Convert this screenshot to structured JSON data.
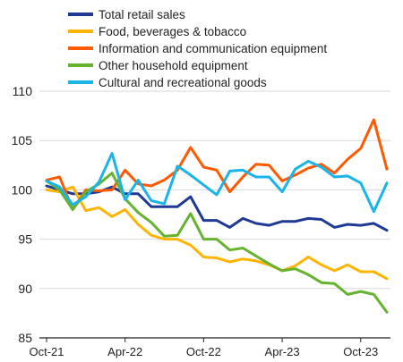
{
  "chart_data": {
    "type": "line",
    "title": "",
    "xlabel": "",
    "ylabel": "",
    "ylim": [
      85,
      110
    ],
    "yticks": [
      85,
      90,
      95,
      100,
      105,
      110
    ],
    "x": [
      "Oct-21",
      "Nov-21",
      "Dec-21",
      "Jan-22",
      "Feb-22",
      "Mar-22",
      "Apr-22",
      "May-22",
      "Jun-22",
      "Jul-22",
      "Aug-22",
      "Sep-22",
      "Oct-22",
      "Nov-22",
      "Dec-22",
      "Jan-23",
      "Feb-23",
      "Mar-23",
      "Apr-23",
      "May-23",
      "Jun-23",
      "Jul-23",
      "Aug-23",
      "Sep-23",
      "Oct-23",
      "Nov-23",
      "Dec-23"
    ],
    "xtick_labels": [
      "Oct-21",
      "Apr-22",
      "Oct-22",
      "Apr-23",
      "Oct-23"
    ],
    "xtick_indices": [
      0,
      6,
      12,
      18,
      24
    ],
    "grid": "horizontal",
    "legend_position": "top",
    "series": [
      {
        "name": "Total retail sales",
        "color": "#1f3a93",
        "values": [
          100.4,
          100.0,
          99.6,
          99.6,
          99.8,
          100.3,
          99.6,
          99.6,
          98.3,
          98.3,
          98.3,
          99.3,
          96.9,
          96.9,
          96.2,
          97.1,
          96.6,
          96.4,
          96.8,
          96.8,
          97.1,
          97.0,
          96.2,
          96.5,
          96.4,
          96.6,
          95.9
        ]
      },
      {
        "name": "Food, beverages & tobacco",
        "color": "#ffb400",
        "values": [
          100.0,
          99.8,
          100.3,
          97.9,
          98.2,
          97.3,
          98.0,
          96.5,
          95.4,
          95.0,
          95.0,
          94.4,
          93.2,
          93.1,
          92.7,
          93.0,
          92.8,
          92.4,
          91.8,
          92.3,
          93.2,
          92.4,
          91.8,
          92.4,
          91.7,
          91.7,
          91.0
        ]
      },
      {
        "name": "Information and communication equipment",
        "color": "#ff5a00",
        "values": [
          101.0,
          101.3,
          98.0,
          100.0,
          99.9,
          100.0,
          102.0,
          100.6,
          100.4,
          101.0,
          102.0,
          104.3,
          102.3,
          102.0,
          99.8,
          101.3,
          102.6,
          102.5,
          100.9,
          101.5,
          102.2,
          102.6,
          101.7,
          103.1,
          104.2,
          107.1,
          102.1
        ]
      },
      {
        "name": "Other household equipment",
        "color": "#65b32e",
        "values": [
          100.9,
          100.0,
          98.0,
          99.8,
          100.6,
          101.7,
          99.1,
          97.7,
          96.7,
          95.3,
          95.4,
          97.6,
          95.0,
          95.0,
          93.9,
          94.1,
          93.3,
          92.5,
          91.8,
          92.0,
          91.4,
          90.6,
          90.5,
          89.4,
          89.7,
          89.4,
          87.6
        ]
      },
      {
        "name": "Cultural and recreational goods",
        "color": "#1ab4e8",
        "values": [
          100.9,
          100.3,
          98.5,
          99.3,
          100.8,
          103.7,
          99.0,
          101.0,
          98.9,
          98.6,
          102.4,
          101.5,
          100.5,
          99.5,
          101.9,
          102.0,
          101.3,
          101.3,
          99.8,
          102.1,
          102.9,
          102.3,
          101.3,
          101.4,
          100.7,
          97.8,
          100.7
        ]
      }
    ]
  }
}
